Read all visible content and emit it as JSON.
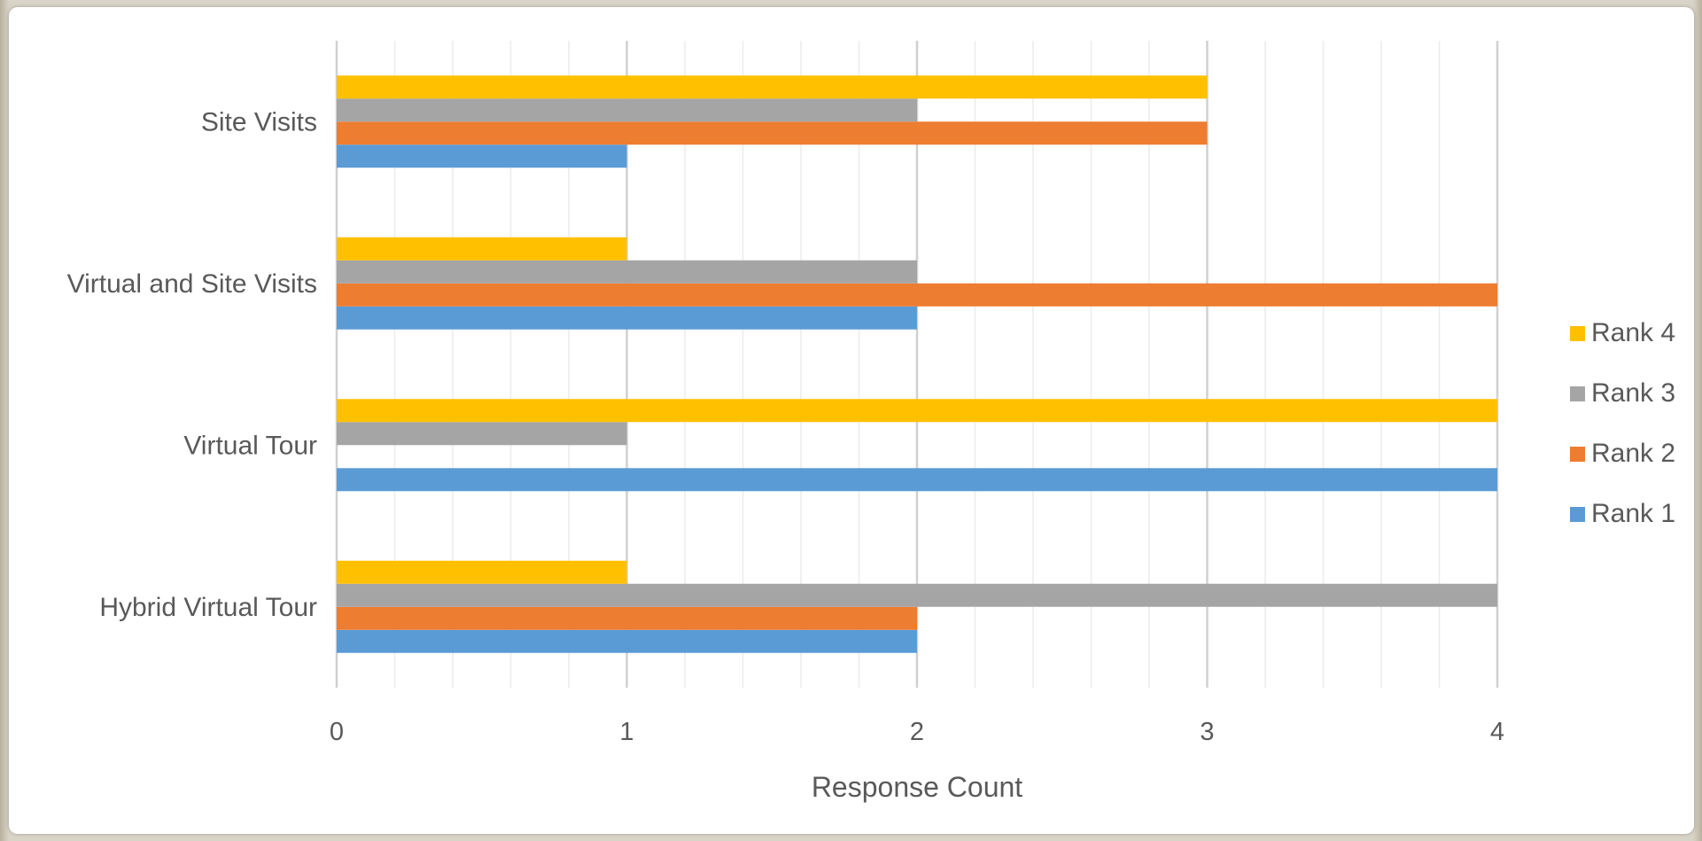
{
  "chart_data": {
    "type": "bar",
    "orientation": "horizontal",
    "categories": [
      "Hybrid Virtual Tour",
      "Virtual Tour",
      "Virtual and Site Visits",
      "Site Visits"
    ],
    "series": [
      {
        "name": "Rank 1",
        "values": [
          2,
          4,
          2,
          1
        ],
        "color": "#5b9bd5"
      },
      {
        "name": "Rank 2",
        "values": [
          2,
          0,
          4,
          3
        ],
        "color": "#ed7d31"
      },
      {
        "name": "Rank 3",
        "values": [
          4,
          1,
          2,
          2
        ],
        "color": "#a5a5a5"
      },
      {
        "name": "Rank 4",
        "values": [
          1,
          4,
          1,
          3
        ],
        "color": "#ffc000"
      }
    ],
    "title": "",
    "xlabel": "Response Count",
    "ylabel": "",
    "xlim": [
      0,
      4
    ],
    "xticks": [
      "0",
      "1",
      "2",
      "3",
      "4"
    ],
    "grid": true,
    "minor_grid": true,
    "legend_position": "right",
    "legend_order": [
      "Rank 4",
      "Rank 3",
      "Rank 2",
      "Rank 1"
    ]
  }
}
